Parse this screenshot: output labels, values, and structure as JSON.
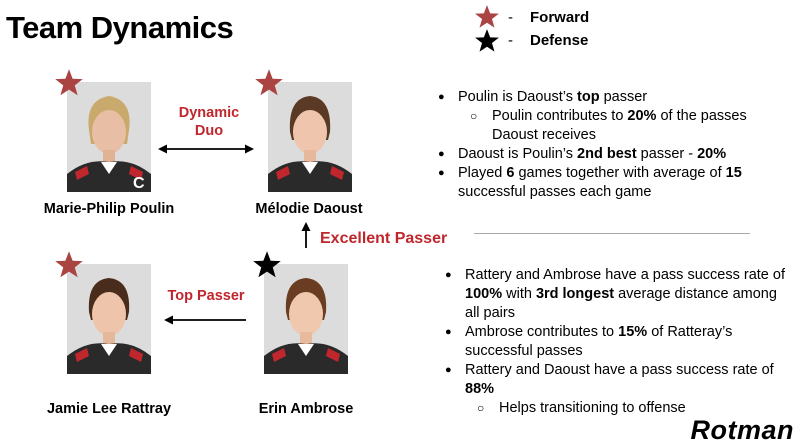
{
  "title": "Team Dynamics",
  "legend": [
    {
      "label": "Forward",
      "dash": "-",
      "color": "#a94442"
    },
    {
      "label": "Defense",
      "dash": "-",
      "color": "#000000"
    }
  ],
  "colors": {
    "forward_star": "#a94442",
    "defense_star": "#000000",
    "accent_text": "#c0272d"
  },
  "players": {
    "poulin": {
      "name": "Marie-Philip Poulin",
      "position": "Forward",
      "icon": "forward-star-icon"
    },
    "daoust": {
      "name": "Mélodie Daoust",
      "position": "Forward",
      "icon": "forward-star-icon"
    },
    "rattray": {
      "name": "Jamie Lee Rattray",
      "position": "Forward",
      "icon": "forward-star-icon"
    },
    "ambrose": {
      "name": "Erin Ambrose",
      "position": "Defense",
      "icon": "defense-star-icon"
    }
  },
  "links": {
    "dynamic_duo": {
      "line1": "Dynamic",
      "line2": "Duo"
    },
    "excellent_passer": "Excellent Passer",
    "top_passer": "Top Passer"
  },
  "notes_top": {
    "b1": {
      "pre": "Poulin is Daoust’s ",
      "bold": "top",
      "post": " passer"
    },
    "b1_sub": {
      "pre": "Poulin contributes to ",
      "bold": "20%",
      "post": " of the passes Daoust receives"
    },
    "b2": {
      "pre": "Daoust is Poulin’s ",
      "bold": "2nd best",
      "post": " passer - ",
      "bold2": "20%"
    },
    "b3": {
      "pre": "Played ",
      "bold": "6",
      "mid": " games together with average of ",
      "bold2": "15",
      "post": " successful passes each game"
    }
  },
  "notes_bottom": {
    "b1": {
      "pre": "Rattery and Ambrose have a pass success rate of ",
      "bold": "100%",
      "mid": " with ",
      "bold2": "3rd longest",
      "post": " average distance among all pairs"
    },
    "b2": {
      "pre": "Ambrose contributes to ",
      "bold": "15%",
      "post": " of Ratteray’s successful passes"
    },
    "b3": {
      "pre": "Rattery and Daoust have a pass success rate of ",
      "bold": "88%"
    },
    "b3_sub": "Helps transitioning to offense"
  },
  "logo": "Rotman"
}
